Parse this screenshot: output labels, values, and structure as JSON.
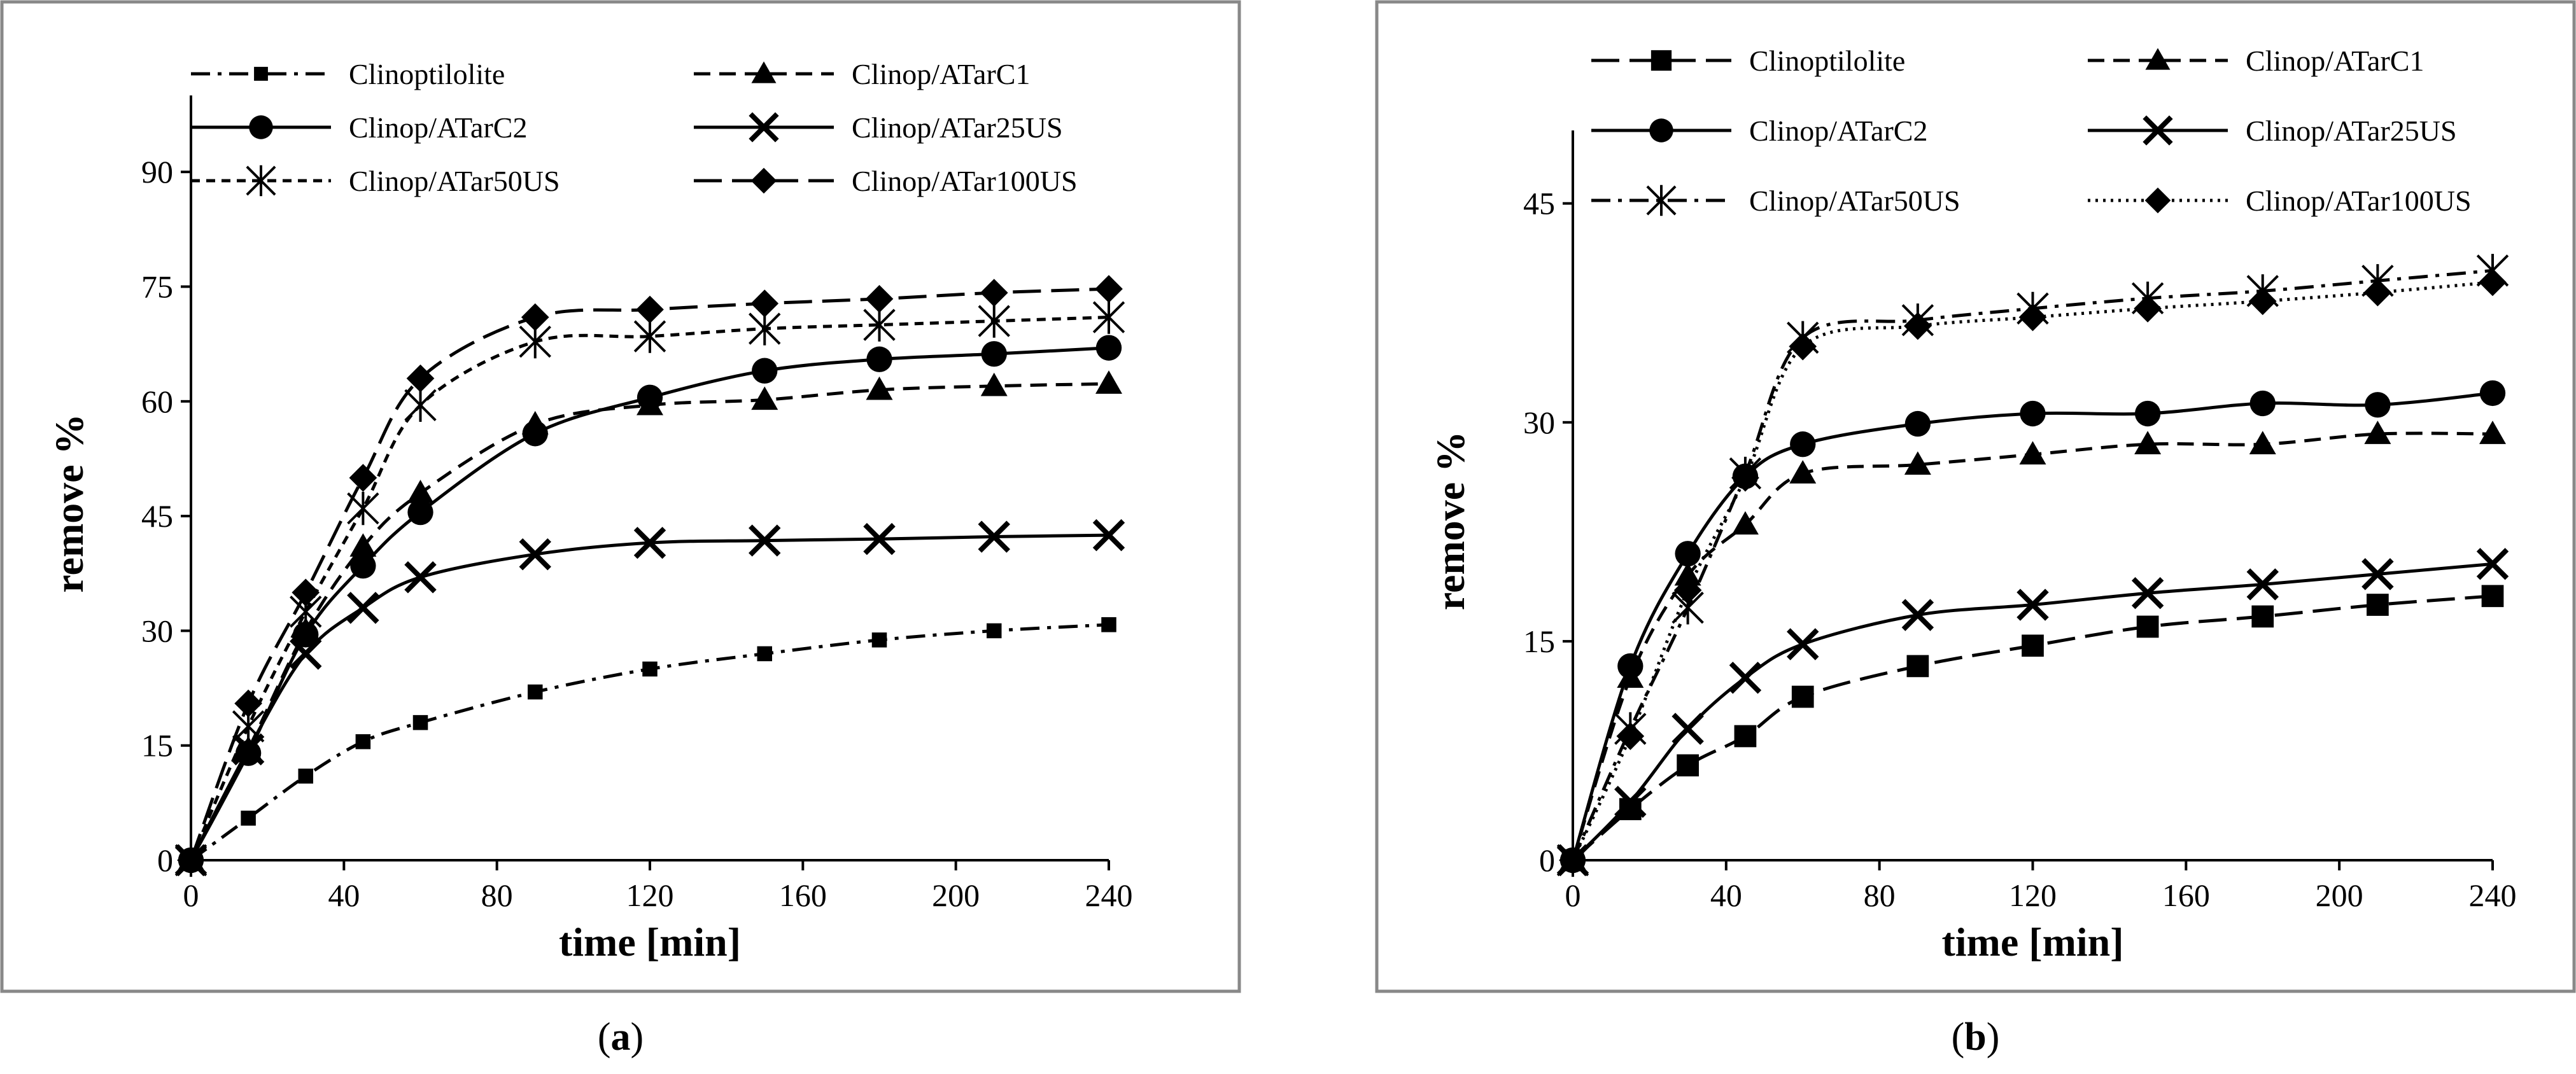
{
  "chart_data": [
    {
      "type": "line",
      "id": "a",
      "caption": "a",
      "xlabel": "time [min]",
      "ylabel": "remove %",
      "xlim": [
        0,
        240
      ],
      "ylim": [
        0,
        100
      ],
      "xticks": [
        0,
        40,
        80,
        120,
        160,
        200,
        240
      ],
      "yticks": [
        0,
        15,
        30,
        45,
        60,
        75,
        90
      ],
      "x": [
        0,
        15,
        30,
        45,
        60,
        90,
        120,
        150,
        180,
        210,
        240
      ],
      "series": [
        {
          "name": "Clinoptilolite",
          "marker": "square-small",
          "dash": "dashdot",
          "values": [
            0,
            5.5,
            11,
            15.5,
            18,
            22,
            25,
            27,
            28.8,
            30,
            30.8
          ]
        },
        {
          "name": "Clinop/ATarC1",
          "marker": "triangle",
          "dash": "dash",
          "values": [
            0,
            14.5,
            30,
            41,
            48,
            57,
            59.5,
            60.2,
            61.5,
            62,
            62.3
          ]
        },
        {
          "name": "Clinop/ATarC2",
          "marker": "circle",
          "dash": "solid",
          "values": [
            0,
            14,
            29.5,
            38.5,
            45.5,
            55.8,
            60.5,
            64,
            65.5,
            66.2,
            67
          ]
        },
        {
          "name": "Clinop/ATar25US",
          "marker": "x",
          "dash": "solid",
          "values": [
            0,
            14.5,
            27,
            33,
            37,
            40,
            41.5,
            41.8,
            42,
            42.3,
            42.5
          ]
        },
        {
          "name": "Clinop/ATar50US",
          "marker": "asterisk",
          "dash": "shortdash",
          "values": [
            0,
            17.5,
            32.5,
            46,
            59.5,
            67.8,
            68.5,
            69.5,
            70,
            70.5,
            71
          ]
        },
        {
          "name": "Clinop/ATar100US",
          "marker": "diamond",
          "dash": "longdash",
          "values": [
            0,
            20.5,
            35,
            50,
            63,
            71,
            72,
            72.8,
            73.4,
            74.2,
            74.7
          ]
        }
      ]
    },
    {
      "type": "line",
      "id": "b",
      "caption": "b",
      "xlabel": "time [min]",
      "ylabel": "remove %",
      "xlim": [
        0,
        240
      ],
      "ylim": [
        0,
        50
      ],
      "xticks": [
        0,
        40,
        80,
        120,
        160,
        200,
        240
      ],
      "yticks": [
        0,
        15,
        30,
        45
      ],
      "x": [
        0,
        15,
        30,
        45,
        60,
        90,
        120,
        150,
        180,
        210,
        240
      ],
      "series": [
        {
          "name": "Clinoptilolite",
          "marker": "square",
          "dash": "longdash",
          "values": [
            0,
            3.5,
            6.5,
            8.5,
            11.2,
            13.3,
            14.7,
            16,
            16.7,
            17.5,
            18.1
          ]
        },
        {
          "name": "Clinop/ATarC1",
          "marker": "triangle",
          "dash": "dash",
          "values": [
            0,
            12.5,
            19.5,
            23,
            26.5,
            27.1,
            27.8,
            28.5,
            28.5,
            29.2,
            29.2
          ]
        },
        {
          "name": "Clinop/ATarC2",
          "marker": "circle",
          "dash": "solid",
          "values": [
            0,
            13.3,
            21,
            26.3,
            28.5,
            29.9,
            30.6,
            30.6,
            31.3,
            31.2,
            32
          ]
        },
        {
          "name": "Clinop/ATar25US",
          "marker": "x",
          "dash": "solid",
          "values": [
            0,
            4,
            9,
            12.5,
            14.8,
            16.8,
            17.5,
            18.3,
            18.9,
            19.6,
            20.3
          ]
        },
        {
          "name": "Clinop/ATar50US",
          "marker": "asterisk",
          "dash": "dashdot",
          "values": [
            0,
            9,
            17.3,
            26.5,
            35.8,
            37,
            37.8,
            38.5,
            39,
            39.7,
            40.4
          ]
        },
        {
          "name": "Clinop/ATar100US",
          "marker": "diamond",
          "dash": "dotted",
          "values": [
            0,
            8.5,
            18.5,
            26.2,
            35.2,
            36.6,
            37.2,
            37.8,
            38.3,
            38.9,
            39.6
          ]
        }
      ]
    }
  ]
}
